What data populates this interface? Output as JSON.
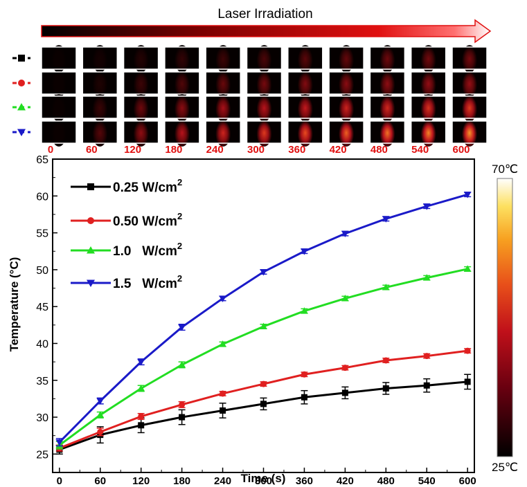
{
  "header": {
    "title": "Laser Irradiation",
    "time_labels": [
      "0",
      "60",
      "120",
      "180",
      "240",
      "300",
      "360",
      "420",
      "480",
      "540",
      "600"
    ],
    "time_label_color": "#e01010"
  },
  "colorbar": {
    "max_label": "70℃",
    "min_label": "25℃"
  },
  "thermal_intensity": [
    [
      0.0,
      0.02,
      0.05,
      0.08,
      0.1,
      0.13,
      0.16,
      0.18,
      0.2,
      0.21,
      0.22
    ],
    [
      0.0,
      0.04,
      0.1,
      0.14,
      0.19,
      0.22,
      0.25,
      0.27,
      0.28,
      0.29,
      0.3
    ],
    [
      0.0,
      0.09,
      0.2,
      0.27,
      0.34,
      0.38,
      0.42,
      0.46,
      0.48,
      0.52,
      0.55
    ],
    [
      0.0,
      0.15,
      0.28,
      0.38,
      0.47,
      0.55,
      0.61,
      0.66,
      0.7,
      0.74,
      0.78
    ]
  ],
  "chart_data": {
    "type": "line",
    "xlabel": "Time (s)",
    "ylabel": "Temperature (°C)",
    "xlim": [
      -10,
      610
    ],
    "ylim": [
      22.5,
      65
    ],
    "xticks": [
      0,
      60,
      120,
      180,
      240,
      300,
      360,
      420,
      480,
      540,
      600
    ],
    "yticks": [
      25,
      30,
      35,
      40,
      45,
      50,
      55,
      60,
      65
    ],
    "legend_position": "top-left",
    "x": [
      0,
      60,
      120,
      180,
      240,
      300,
      360,
      420,
      480,
      540,
      600
    ],
    "series": [
      {
        "name": "0.25 W/cm",
        "unit_superscript": "2",
        "color": "#000000",
        "marker": "square",
        "values": [
          25.6,
          27.6,
          28.9,
          30.0,
          30.9,
          31.8,
          32.7,
          33.3,
          33.9,
          34.3,
          34.8
        ],
        "errors": [
          0.6,
          1.1,
          1.0,
          1.0,
          1.0,
          0.8,
          0.9,
          0.8,
          0.8,
          0.9,
          1.0
        ]
      },
      {
        "name": "0.50 W/cm",
        "unit_superscript": "2",
        "color": "#e02020",
        "marker": "circle",
        "values": [
          25.8,
          28.0,
          30.1,
          31.7,
          33.2,
          34.5,
          35.8,
          36.7,
          37.7,
          38.3,
          39.0
        ],
        "errors": [
          0.4,
          0.5,
          0.4,
          0.4,
          0.3,
          0.3,
          0.3,
          0.3,
          0.3,
          0.3,
          0.3
        ]
      },
      {
        "name": "1.0   W/cm",
        "unit_superscript": "2",
        "color": "#22dd22",
        "marker": "triangle-up",
        "values": [
          26.2,
          30.3,
          33.9,
          37.1,
          39.9,
          42.3,
          44.4,
          46.1,
          47.6,
          48.9,
          50.1
        ],
        "errors": [
          0.5,
          0.4,
          0.4,
          0.4,
          0.3,
          0.3,
          0.3,
          0.3,
          0.3,
          0.3,
          0.3
        ]
      },
      {
        "name": "1.5   W/cm",
        "unit_superscript": "2",
        "color": "#1a1ac8",
        "marker": "triangle-down",
        "values": [
          26.6,
          32.2,
          37.5,
          42.2,
          46.1,
          49.7,
          52.5,
          54.9,
          56.9,
          58.6,
          60.2
        ],
        "errors": [
          0.5,
          0.4,
          0.4,
          0.4,
          0.3,
          0.3,
          0.3,
          0.3,
          0.3,
          0.3,
          0.3
        ]
      }
    ]
  }
}
